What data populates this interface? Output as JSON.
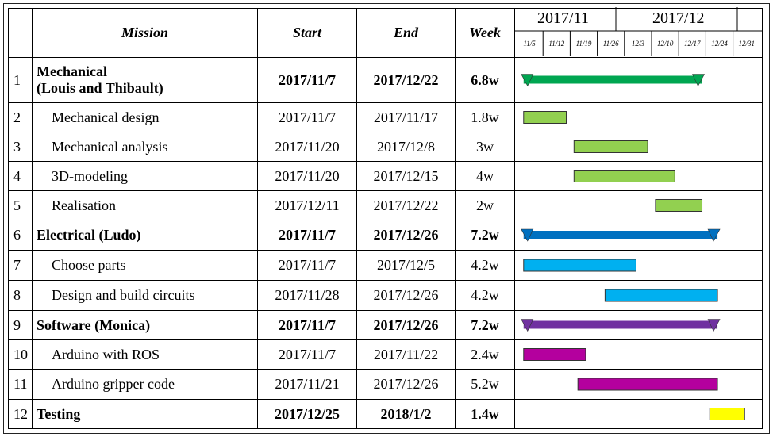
{
  "header": {
    "col_no": "",
    "col_mission": "Mission",
    "col_start": "Start",
    "col_end": "End",
    "col_week": "Week",
    "months": [
      "2017/11",
      "2017/12"
    ],
    "weeks": [
      "11/5",
      "11/12",
      "11/19",
      "11/26",
      "12/3",
      "12/10",
      "12/17",
      "12/24",
      "12/31"
    ]
  },
  "rows": [
    {
      "no": "1",
      "mission": "Mechanical\n(Louis and Thibault)",
      "start": "2017/11/7",
      "end": "2017/12/22",
      "week": "6.8w",
      "bold": true,
      "color": "#00a651",
      "kind": "summary"
    },
    {
      "no": "2",
      "mission": "Mechanical design",
      "start": "2017/11/7",
      "end": "2017/11/17",
      "week": "1.8w",
      "bold": false,
      "color": "#92d050",
      "kind": "task"
    },
    {
      "no": "3",
      "mission": "Mechanical analysis",
      "start": "2017/11/20",
      "end": "2017/12/8",
      "week": "3w",
      "bold": false,
      "color": "#92d050",
      "kind": "task"
    },
    {
      "no": "4",
      "mission": "3D-modeling",
      "start": "2017/11/20",
      "end": "2017/12/15",
      "week": "4w",
      "bold": false,
      "color": "#92d050",
      "kind": "task"
    },
    {
      "no": "5",
      "mission": "Realisation",
      "start": "2017/12/11",
      "end": "2017/12/22",
      "week": "2w",
      "bold": false,
      "color": "#92d050",
      "kind": "task"
    },
    {
      "no": "6",
      "mission": "Electrical (Ludo)",
      "start": "2017/11/7",
      "end": "2017/12/26",
      "week": "7.2w",
      "bold": true,
      "color": "#0070c0",
      "kind": "summary"
    },
    {
      "no": "7",
      "mission": "Choose parts",
      "start": "2017/11/7",
      "end": "2017/12/5",
      "week": "4.2w",
      "bold": false,
      "color": "#00b0f0",
      "kind": "task"
    },
    {
      "no": "8",
      "mission": "Design and build circuits",
      "start": "2017/11/28",
      "end": "2017/12/26",
      "week": "4.2w",
      "bold": false,
      "color": "#00b0f0",
      "kind": "task"
    },
    {
      "no": "9",
      "mission": "Software (Monica)",
      "start": "2017/11/7",
      "end": "2017/12/26",
      "week": "7.2w",
      "bold": true,
      "color": "#7030a0",
      "kind": "summary"
    },
    {
      "no": "10",
      "mission": "Arduino with ROS",
      "start": "2017/11/7",
      "end": "2017/11/22",
      "week": "2.4w",
      "bold": false,
      "color": "#b4009e",
      "kind": "task"
    },
    {
      "no": "11",
      "mission": "Arduino gripper code",
      "start": "2017/11/21",
      "end": "2017/12/26",
      "week": "5.2w",
      "bold": false,
      "color": "#b4009e",
      "kind": "task"
    },
    {
      "no": "12",
      "mission": "Testing",
      "start": "2017/12/25",
      "end": "2018/1/2",
      "week": "1.4w",
      "bold": true,
      "color": "#ffff00",
      "kind": "task"
    }
  ]
}
